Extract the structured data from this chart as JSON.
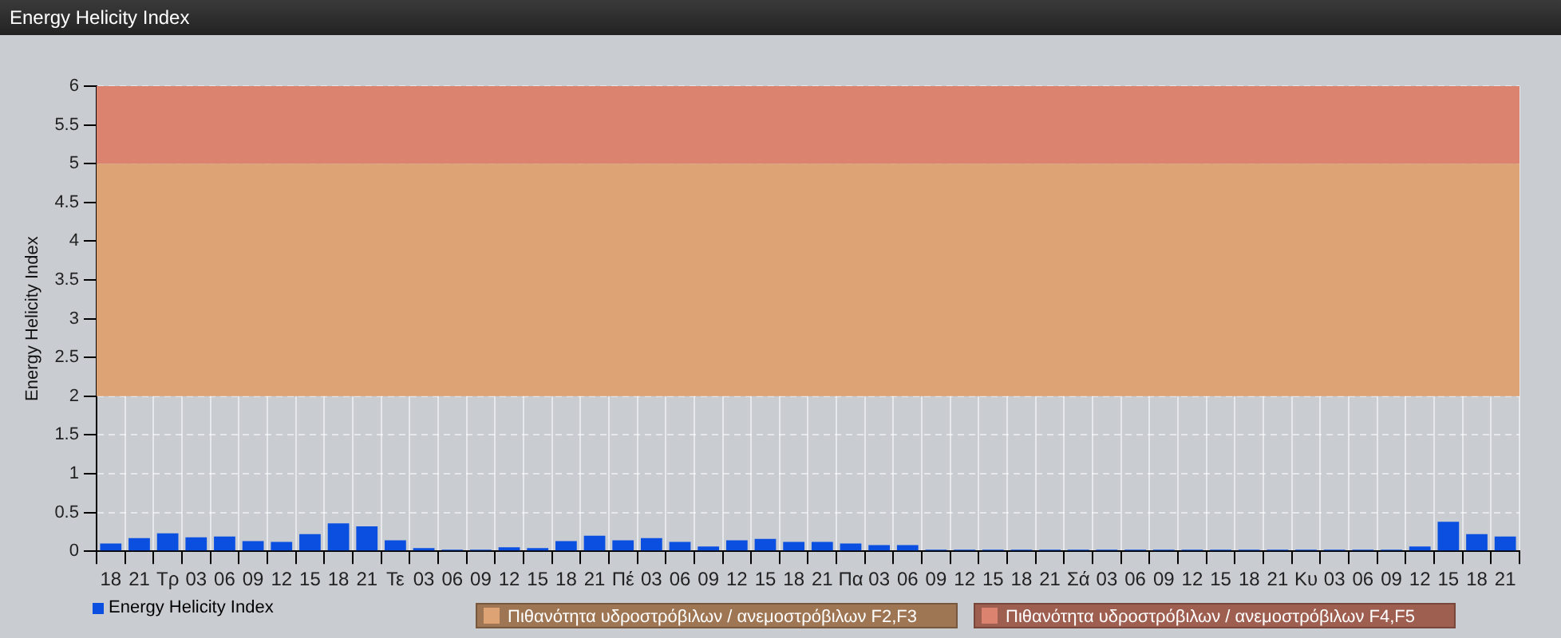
{
  "chart_data": {
    "type": "bar",
    "title": "Energy Helicity Index",
    "ylabel": "Energy Helicity Index",
    "categories": [
      "18",
      "21",
      "Τρ",
      "03",
      "06",
      "09",
      "12",
      "15",
      "18",
      "21",
      "Τε",
      "03",
      "06",
      "09",
      "12",
      "15",
      "18",
      "21",
      "Πέ",
      "03",
      "06",
      "09",
      "12",
      "15",
      "18",
      "21",
      "Πα",
      "03",
      "06",
      "09",
      "12",
      "15",
      "18",
      "21",
      "Σά",
      "03",
      "06",
      "09",
      "12",
      "15",
      "18",
      "21",
      "Κυ",
      "03",
      "06",
      "09",
      "12",
      "15",
      "18",
      "21"
    ],
    "series": [
      {
        "name": "Energy Helicity Index",
        "color": "#0a4fe0",
        "values": [
          0.1,
          0.17,
          0.23,
          0.18,
          0.19,
          0.13,
          0.12,
          0.22,
          0.36,
          0.32,
          0.14,
          0.04,
          0.02,
          0.02,
          0.05,
          0.04,
          0.13,
          0.2,
          0.14,
          0.17,
          0.12,
          0.06,
          0.14,
          0.16,
          0.12,
          0.12,
          0.1,
          0.08,
          0.08,
          0.02,
          0.02,
          0.02,
          0.02,
          0.02,
          0.02,
          0.02,
          0.02,
          0.02,
          0.02,
          0.02,
          0.02,
          0.02,
          0.02,
          0.02,
          0.02,
          0.02,
          0.06,
          0.38,
          0.22,
          0.19
        ]
      }
    ],
    "ylim": [
      0,
      6
    ],
    "yticks": [
      0,
      0.5,
      1,
      1.5,
      2,
      2.5,
      3,
      3.5,
      4,
      4.5,
      5,
      5.5,
      6
    ],
    "bands": [
      {
        "axis": "y",
        "from": 2,
        "to": 5,
        "label": "Πιθανότητα υδροστρόβιλων / ανεμοστρόβιλων F2,F3",
        "color": "#dda374"
      },
      {
        "axis": "y",
        "from": 5,
        "to": 6,
        "label": "Πιθανότητα υδροστρόβιλων / ανεμοστρόβιλων F4,F5",
        "color": "#dc836f"
      }
    ],
    "grid": true,
    "legend": "bottom left"
  }
}
